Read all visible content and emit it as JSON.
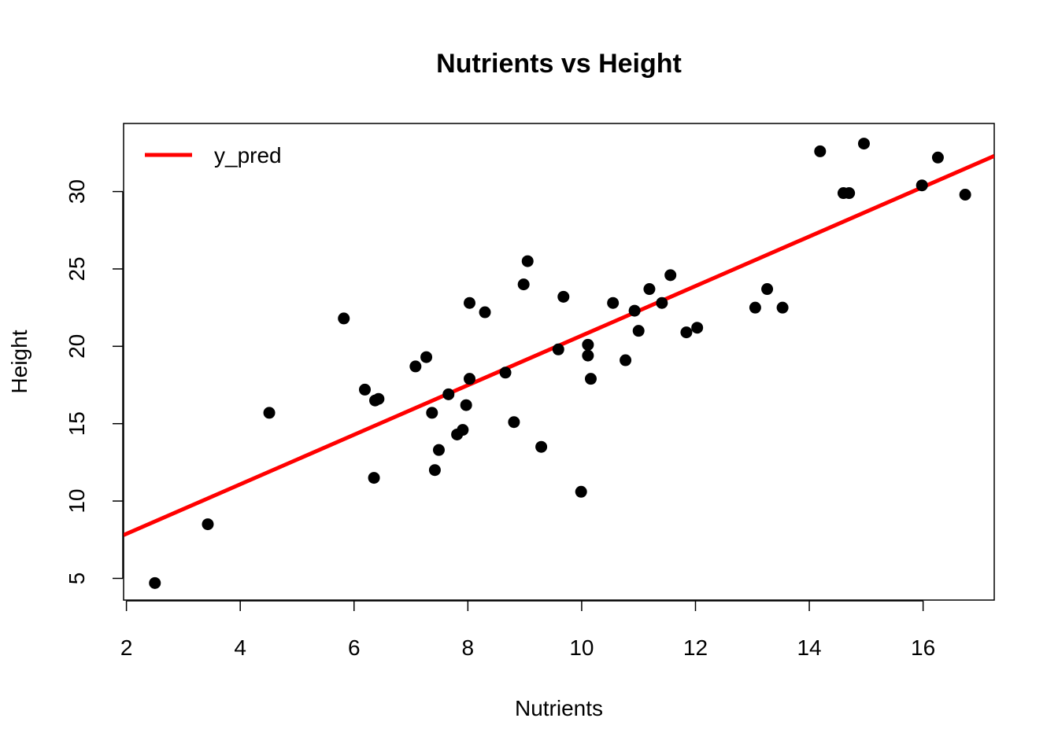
{
  "chart_data": {
    "type": "scatter",
    "title": "Nutrients vs Height",
    "xlabel": "Nutrients",
    "ylabel": "Height",
    "xlim": [
      1.95,
      17.25
    ],
    "ylim": [
      3.6,
      34.4
    ],
    "xticks": [
      2,
      4,
      6,
      8,
      10,
      12,
      14,
      16
    ],
    "yticks": [
      5,
      10,
      15,
      20,
      25,
      30
    ],
    "grid": false,
    "legend": {
      "position": "top-left",
      "entries": [
        {
          "name": "y_pred",
          "color": "#ff0000",
          "kind": "line"
        }
      ]
    },
    "point_color": "#000000",
    "points": [
      [
        2.5,
        4.7
      ],
      [
        3.43,
        8.5
      ],
      [
        4.51,
        15.7
      ],
      [
        5.82,
        21.8
      ],
      [
        6.19,
        17.2
      ],
      [
        6.37,
        16.5
      ],
      [
        6.43,
        16.6
      ],
      [
        6.35,
        11.5
      ],
      [
        7.08,
        18.7
      ],
      [
        7.27,
        19.3
      ],
      [
        7.37,
        15.7
      ],
      [
        7.42,
        12.0
      ],
      [
        7.49,
        13.3
      ],
      [
        7.66,
        16.9
      ],
      [
        7.81,
        14.3
      ],
      [
        7.91,
        14.6
      ],
      [
        7.97,
        16.2
      ],
      [
        8.03,
        22.8
      ],
      [
        8.03,
        17.9
      ],
      [
        8.3,
        22.2
      ],
      [
        8.66,
        18.3
      ],
      [
        8.81,
        15.1
      ],
      [
        8.98,
        24.0
      ],
      [
        9.05,
        25.5
      ],
      [
        9.29,
        13.5
      ],
      [
        9.59,
        19.8
      ],
      [
        9.68,
        23.2
      ],
      [
        9.99,
        10.6
      ],
      [
        10.11,
        20.1
      ],
      [
        10.11,
        19.4
      ],
      [
        10.16,
        17.9
      ],
      [
        10.55,
        22.8
      ],
      [
        10.77,
        19.1
      ],
      [
        10.93,
        22.3
      ],
      [
        11.0,
        21.0
      ],
      [
        11.19,
        23.7
      ],
      [
        11.41,
        22.8
      ],
      [
        11.56,
        24.6
      ],
      [
        11.84,
        20.9
      ],
      [
        12.03,
        21.2
      ],
      [
        13.05,
        22.5
      ],
      [
        13.26,
        23.7
      ],
      [
        13.53,
        22.5
      ],
      [
        14.19,
        32.6
      ],
      [
        14.6,
        29.9
      ],
      [
        14.7,
        29.9
      ],
      [
        14.96,
        33.1
      ],
      [
        15.98,
        30.4
      ],
      [
        16.26,
        32.2
      ],
      [
        16.74,
        29.8
      ]
    ],
    "series": [
      {
        "name": "y_pred",
        "color": "#ff0000",
        "type": "line",
        "x": [
          1.95,
          17.25
        ],
        "y": [
          7.8,
          32.3
        ]
      }
    ]
  }
}
